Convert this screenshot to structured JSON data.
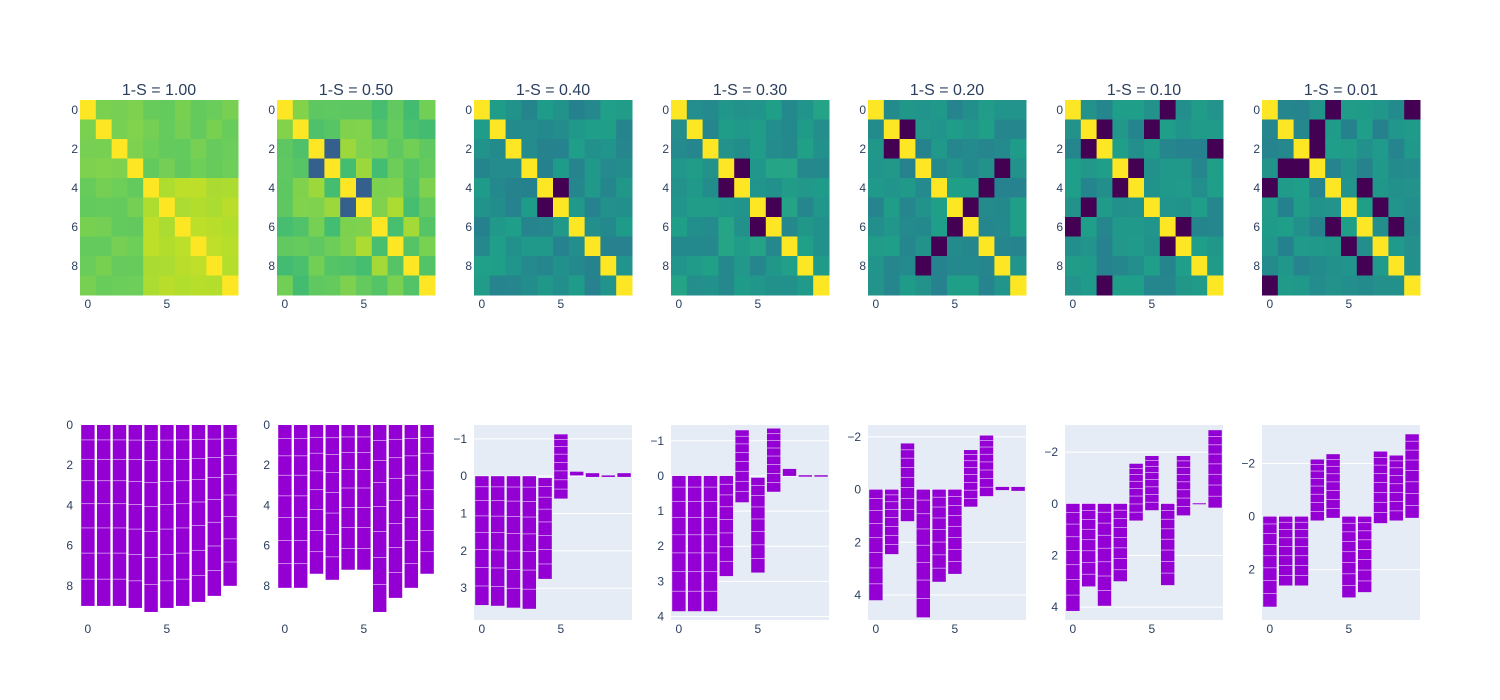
{
  "colors": {
    "bar_fill": "#9400D3",
    "bar_edge": "#ffffff",
    "plot_bg": "#E5ECF6",
    "grid": "#ffffff",
    "colorscale": "viridis"
  },
  "chart_data": [
    {
      "type": "heatmap",
      "title": "1-S = 1.00",
      "n": 10,
      "xticks": [
        "0",
        "5"
      ],
      "yticks": [
        "0",
        "2",
        "4",
        "6",
        "8"
      ],
      "zmin": -1,
      "zmax": 1,
      "grid": false,
      "offdiag_formula": "blocks",
      "base": 0.45,
      "block_same": 0.62,
      "cross": 0.55,
      "blocks": [
        [
          0,
          3
        ],
        [
          4,
          9
        ]
      ]
    },
    {
      "type": "heatmap",
      "title": "1-S = 0.50",
      "n": 10,
      "xticks": [
        "0",
        "5"
      ],
      "yticks": [
        "0",
        "2",
        "4",
        "6",
        "8"
      ],
      "zmin": -1,
      "zmax": 1,
      "grid": false,
      "base": 0.5,
      "pairs": [
        [
          2,
          3,
          -0.4
        ],
        [
          4,
          5,
          -0.4
        ]
      ],
      "bright": [
        [
          2,
          4,
          0.7
        ],
        [
          3,
          5,
          0.7
        ],
        [
          5,
          7,
          0.75
        ],
        [
          6,
          8,
          0.72
        ]
      ]
    },
    {
      "type": "heatmap",
      "title": "1-S = 0.40",
      "n": 10,
      "xticks": [
        "0",
        "5"
      ],
      "yticks": [
        "0",
        "2",
        "4",
        "6",
        "8"
      ],
      "zmin": -1,
      "zmax": 1,
      "grid": false,
      "base": 0.0,
      "pairs": [
        [
          4,
          5,
          -1.0
        ]
      ]
    },
    {
      "type": "heatmap",
      "title": "1-S = 0.30",
      "n": 10,
      "xticks": [
        "0",
        "5"
      ],
      "yticks": [
        "0",
        "2",
        "4",
        "6",
        "8"
      ],
      "zmin": -1,
      "zmax": 1,
      "grid": false,
      "base": 0.05,
      "pairs": [
        [
          3,
          4,
          -1.0
        ],
        [
          5,
          6,
          -1.0
        ]
      ]
    },
    {
      "type": "heatmap",
      "title": "1-S = 0.20",
      "n": 10,
      "xticks": [
        "0",
        "5"
      ],
      "yticks": [
        "0",
        "2",
        "4",
        "6",
        "8"
      ],
      "zmin": -1,
      "zmax": 1,
      "grid": false,
      "base": 0.0,
      "pairs": [
        [
          1,
          2,
          -1.0
        ],
        [
          5,
          6,
          -1.0
        ],
        [
          4,
          7,
          -1.0
        ],
        [
          3,
          8,
          -1.0
        ]
      ]
    },
    {
      "type": "heatmap",
      "title": "1-S = 0.10",
      "n": 10,
      "xticks": [
        "0",
        "5"
      ],
      "yticks": [
        "0",
        "2",
        "4",
        "6",
        "8"
      ],
      "zmin": -1,
      "zmax": 1,
      "grid": false,
      "base": 0.0,
      "pairs": [
        [
          1,
          5,
          -1.0
        ],
        [
          3,
          4,
          -1.0
        ],
        [
          6,
          7,
          -1.0
        ],
        [
          0,
          6,
          -1.0
        ],
        [
          2,
          9,
          -1.0
        ],
        [
          1,
          2,
          -1.0
        ]
      ]
    },
    {
      "type": "heatmap",
      "title": "1-S = 0.01",
      "n": 10,
      "xticks": [
        "0",
        "5"
      ],
      "yticks": [
        "0",
        "2",
        "4",
        "6",
        "8"
      ],
      "zmin": -1,
      "zmax": 1,
      "grid": false,
      "base": 0.0,
      "pairs": [
        [
          0,
          9,
          -1.0
        ],
        [
          1,
          3,
          -1.0
        ],
        [
          2,
          3,
          -1.0
        ],
        [
          4,
          6,
          -1.0
        ],
        [
          5,
          7,
          -1.0
        ],
        [
          6,
          8,
          -1.0
        ],
        [
          0,
          4,
          -1.0
        ]
      ]
    },
    {
      "type": "bar",
      "stacked": "base-offset",
      "reversed_y": true,
      "xticks": [
        "0",
        "5"
      ],
      "ylim": [
        0,
        9.7
      ],
      "yticks": [
        0,
        2,
        4,
        6,
        8
      ],
      "ygrid": false,
      "values": [
        [
          0,
          9.0
        ],
        [
          0,
          9.0
        ],
        [
          0,
          9.0
        ],
        [
          0,
          9.1
        ],
        [
          0,
          9.3
        ],
        [
          0,
          9.1
        ],
        [
          0,
          9.0
        ],
        [
          0,
          8.8
        ],
        [
          0,
          8.5
        ],
        [
          0,
          8.0
        ]
      ]
    },
    {
      "type": "bar",
      "stacked": "base-offset",
      "reversed_y": true,
      "xticks": [
        "0",
        "5"
      ],
      "ylim": [
        0,
        9.7
      ],
      "yticks": [
        0,
        2,
        4,
        6,
        8
      ],
      "ygrid": false,
      "values": [
        [
          0,
          8.1
        ],
        [
          0,
          8.1
        ],
        [
          0,
          7.4
        ],
        [
          0,
          7.7
        ],
        [
          0,
          7.2
        ],
        [
          0,
          7.2
        ],
        [
          0,
          9.3
        ],
        [
          0,
          8.6
        ],
        [
          0,
          8.1
        ],
        [
          0,
          7.4
        ]
      ]
    },
    {
      "type": "bar",
      "stacked": "base-offset",
      "reversed_y": true,
      "xticks": [
        "0",
        "5"
      ],
      "ylim": [
        -1.37,
        3.85
      ],
      "yticks": [
        -1,
        0,
        1,
        2,
        3
      ],
      "ygrid": true,
      "values": [
        [
          0,
          3.45
        ],
        [
          0,
          3.47
        ],
        [
          0,
          3.52
        ],
        [
          0,
          3.55
        ],
        [
          0.05,
          2.75
        ],
        [
          -1.12,
          0.6
        ],
        [
          -0.12,
          -0.02
        ],
        [
          -0.08,
          0.02
        ],
        [
          -0.02,
          0.02
        ],
        [
          -0.08,
          0.02
        ]
      ]
    },
    {
      "type": "bar",
      "stacked": "base-offset",
      "reversed_y": true,
      "xticks": [
        "0",
        "5"
      ],
      "ylim": [
        -1.45,
        4.1
      ],
      "yticks": [
        -1,
        0,
        1,
        2,
        3,
        4
      ],
      "ygrid": true,
      "values": [
        [
          0,
          3.85
        ],
        [
          0,
          3.85
        ],
        [
          0,
          3.85
        ],
        [
          0,
          2.85
        ],
        [
          -1.3,
          0.75
        ],
        [
          0.05,
          2.75
        ],
        [
          -1.35,
          0.45
        ],
        [
          -0.2,
          0.0
        ],
        [
          -0.02,
          0.02
        ],
        [
          -0.02,
          0.02
        ]
      ]
    },
    {
      "type": "bar",
      "stacked": "base-offset",
      "reversed_y": true,
      "xticks": [
        "0",
        "5"
      ],
      "ylim": [
        -2.45,
        4.95
      ],
      "yticks": [
        -2,
        0,
        2,
        4
      ],
      "ygrid": true,
      "values": [
        [
          0,
          4.2
        ],
        [
          0,
          2.45
        ],
        [
          -1.75,
          1.2
        ],
        [
          0,
          4.85
        ],
        [
          0,
          3.5
        ],
        [
          0,
          3.2
        ],
        [
          -1.5,
          0.65
        ],
        [
          -2.05,
          0.25
        ],
        [
          -0.1,
          0.02
        ],
        [
          -0.1,
          0.05
        ]
      ]
    },
    {
      "type": "bar",
      "stacked": "base-offset",
      "reversed_y": true,
      "xticks": [
        "0",
        "5"
      ],
      "ylim": [
        -3.05,
        4.5
      ],
      "yticks": [
        -2,
        0,
        2,
        4
      ],
      "ygrid": true,
      "values": [
        [
          0,
          4.15
        ],
        [
          0,
          3.2
        ],
        [
          0,
          3.95
        ],
        [
          0,
          3.0
        ],
        [
          -1.55,
          0.65
        ],
        [
          -1.85,
          0.25
        ],
        [
          0,
          3.15
        ],
        [
          -1.85,
          0.45
        ],
        [
          -0.02,
          0.02
        ],
        [
          -2.85,
          0.15
        ]
      ]
    },
    {
      "type": "bar",
      "stacked": "base-offset",
      "reversed_y": true,
      "xticks": [
        "0",
        "5"
      ],
      "ylim": [
        -3.45,
        3.9
      ],
      "yticks": [
        -2,
        0,
        2
      ],
      "ygrid": true,
      "values": [
        [
          0,
          3.4
        ],
        [
          0,
          2.6
        ],
        [
          0,
          2.6
        ],
        [
          -2.15,
          0.15
        ],
        [
          -2.35,
          0.05
        ],
        [
          0,
          3.05
        ],
        [
          0,
          2.85
        ],
        [
          -2.45,
          0.25
        ],
        [
          -2.3,
          0.15
        ],
        [
          -3.1,
          0.05
        ]
      ]
    }
  ]
}
